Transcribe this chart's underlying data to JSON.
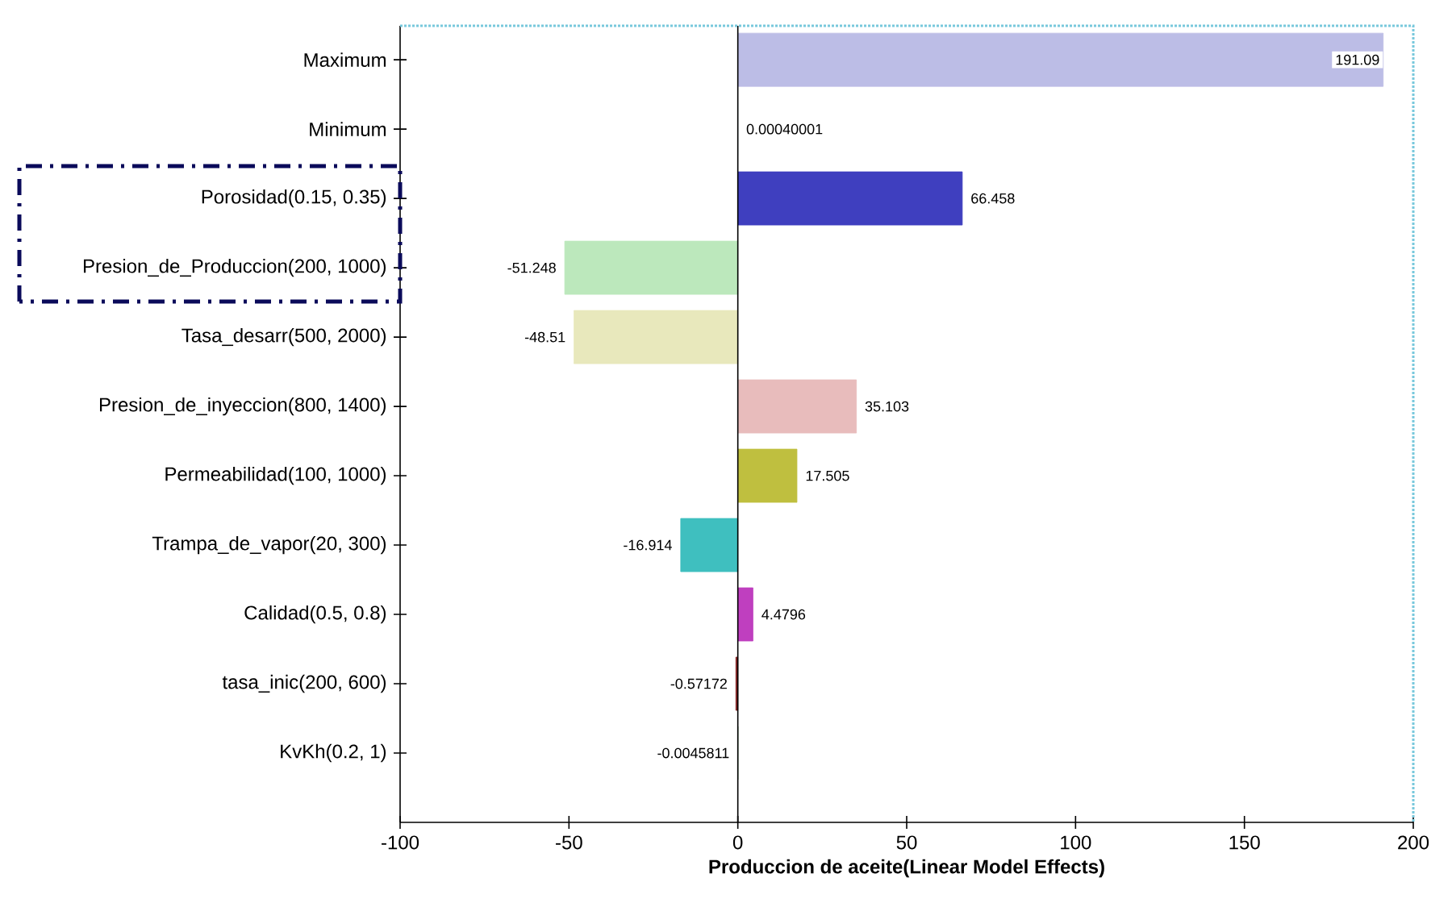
{
  "chart_data": {
    "type": "bar",
    "orientation": "horizontal",
    "xlabel": "Produccion de aceite(Linear Model Effects)",
    "categories": [
      "Maximum",
      "Minimum",
      "Porosidad(0.15, 0.35)",
      "Presion_de_Produccion(200, 1000)",
      "Tasa_desarr(500, 2000)",
      "Presion_de_inyeccion(800, 1400)",
      "Permeabilidad(100, 1000)",
      "Trampa_de_vapor(20, 300)",
      "Calidad(0.5, 0.8)",
      "tasa_inic(200, 600)",
      "KvKh(0.2, 1)"
    ],
    "values": [
      191.09,
      0.00040001,
      66.458,
      -51.248,
      -48.51,
      35.103,
      17.505,
      -16.914,
      4.4796,
      -0.57172,
      -0.0045811
    ],
    "colors": [
      "#bcbde6",
      "#d8f0f0",
      "#3f3fbf",
      "#bce8bc",
      "#e8e8bc",
      "#e8bcbc",
      "#bfbf3f",
      "#3fbfbf",
      "#bf3fbf",
      "#7f1f1f",
      "#1f7f1f"
    ],
    "xlim": [
      -100,
      200
    ],
    "xticks": [
      -100,
      -50,
      0,
      50,
      100,
      150,
      200
    ],
    "ref_lines": [
      {
        "axis": "x",
        "value": 0,
        "color": "#000000"
      }
    ],
    "data_labels": true
  }
}
